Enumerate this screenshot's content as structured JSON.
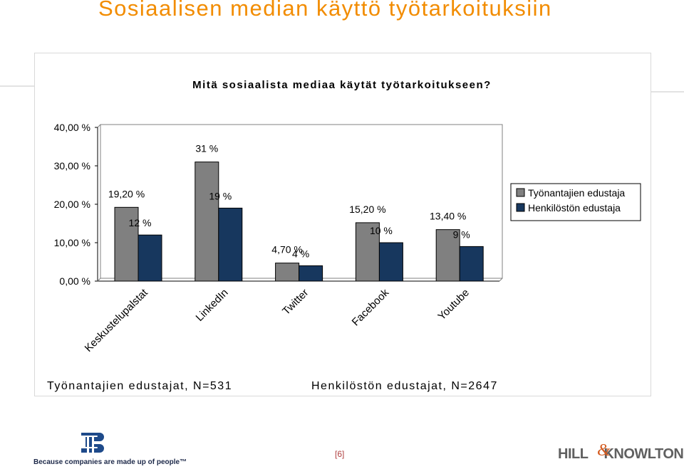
{
  "page": {
    "title": "Sosiaalisen median käyttö työtarkoituksiin",
    "note_employers": "Työnantajien edustajat, N=531",
    "note_employees": "Henkilöstön edustajat, N=2647",
    "page_number": "[6]",
    "footer_tagline": "Because companies are made up of people™",
    "brand_left": "HILL",
    "brand_swash": "&",
    "brand_right": "KNOWLTON",
    "colors": {
      "accent": "#f28c00",
      "series1": "#808080",
      "series2": "#17375e"
    }
  },
  "chart_data": {
    "type": "bar",
    "title": "Mitä sosiaalista mediaa käytät työtarkoitukseen?",
    "categories": [
      "Keskustelupalstat",
      "LinkedIn",
      "Twitter",
      "Facebook",
      "Youtube"
    ],
    "series": [
      {
        "name": "Työnantajien edustaja",
        "values": [
          19.2,
          31,
          4.7,
          15.2,
          13.4
        ],
        "labels": [
          "19,20 %",
          "31 %",
          "4,70 %",
          "15,20 %",
          "13,40 %"
        ],
        "color": "#808080"
      },
      {
        "name": "Henkilöstön edustaja",
        "values": [
          12,
          19,
          4,
          10,
          9
        ],
        "labels": [
          "12 %",
          "19 %",
          "4 %",
          "10 %",
          "9 %"
        ],
        "color": "#17375e"
      }
    ],
    "yticks": [
      "0,00 %",
      "10,00 %",
      "20,00 %",
      "30,00 %",
      "40,00 %"
    ],
    "ylim": [
      0,
      40
    ],
    "legend_position": "right",
    "grid": false
  }
}
